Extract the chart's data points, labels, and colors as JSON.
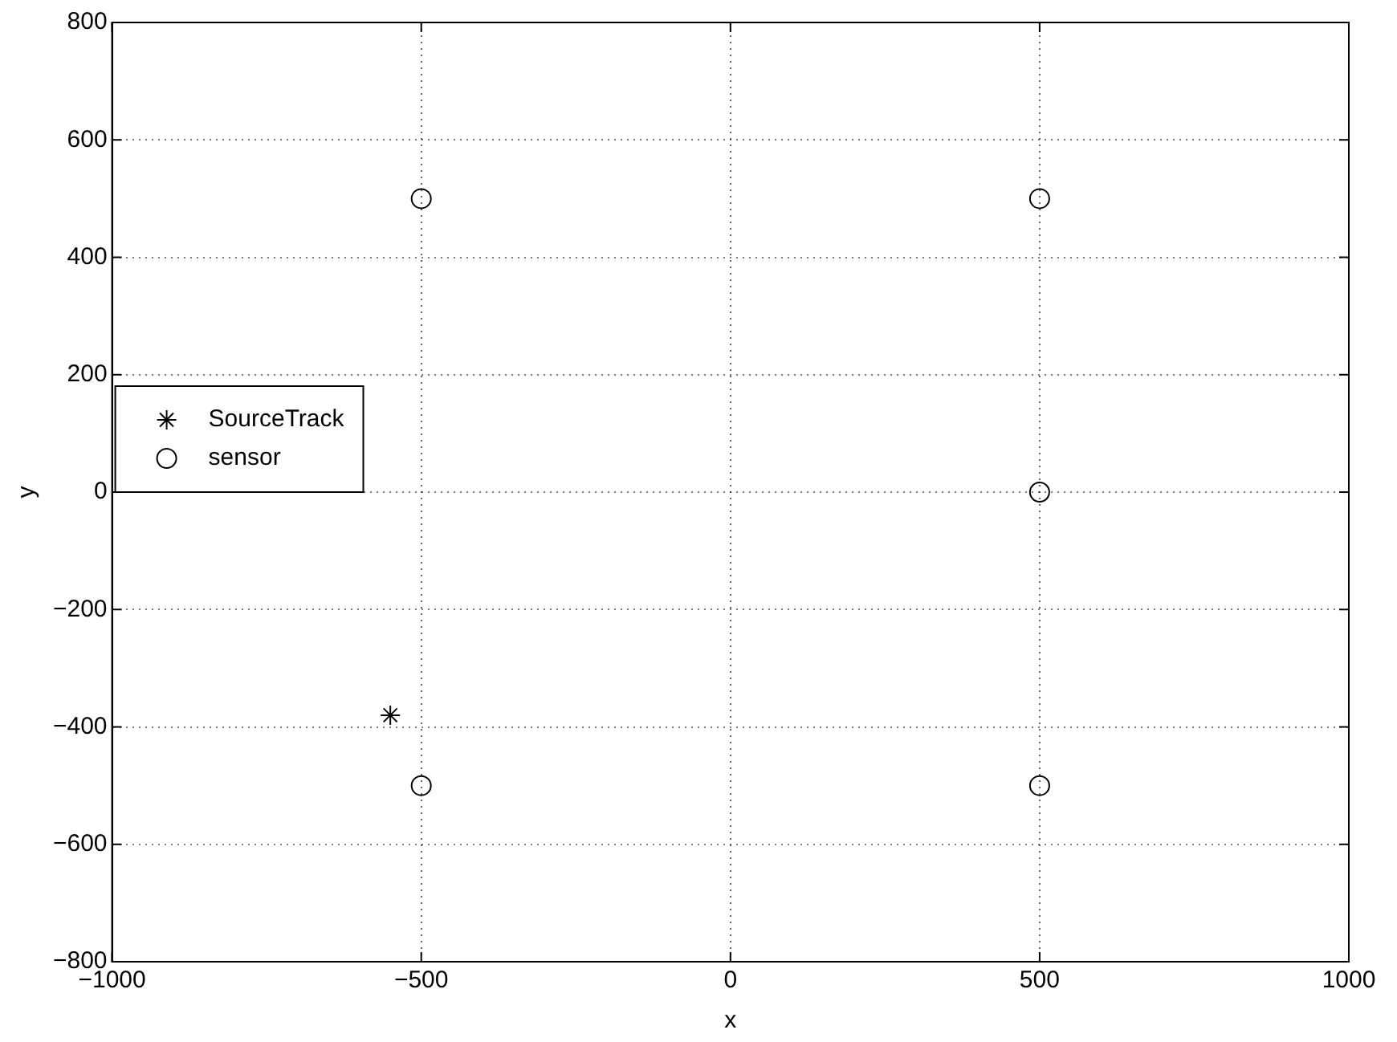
{
  "chart_data": {
    "type": "scatter",
    "xlabel": "x",
    "ylabel": "y",
    "xlim": [
      -1000,
      1000
    ],
    "xticks": [
      -1000,
      -500,
      0,
      500,
      1000
    ],
    "ylim": [
      -800,
      800
    ],
    "yticks": [
      -800,
      -600,
      -400,
      -200,
      0,
      200,
      400,
      600,
      800
    ],
    "grid": true,
    "legend": "left",
    "series": [
      {
        "name": "SourceTrack",
        "color": "#000000",
        "marker": "cross",
        "x": [
          -550
        ],
        "values": [
          -380
        ]
      },
      {
        "name": "sensor",
        "color": "#000000",
        "marker": "circle",
        "x": [
          -500,
          500,
          500,
          -500,
          500
        ],
        "values": [
          500,
          500,
          0,
          -500,
          -500
        ]
      }
    ]
  }
}
